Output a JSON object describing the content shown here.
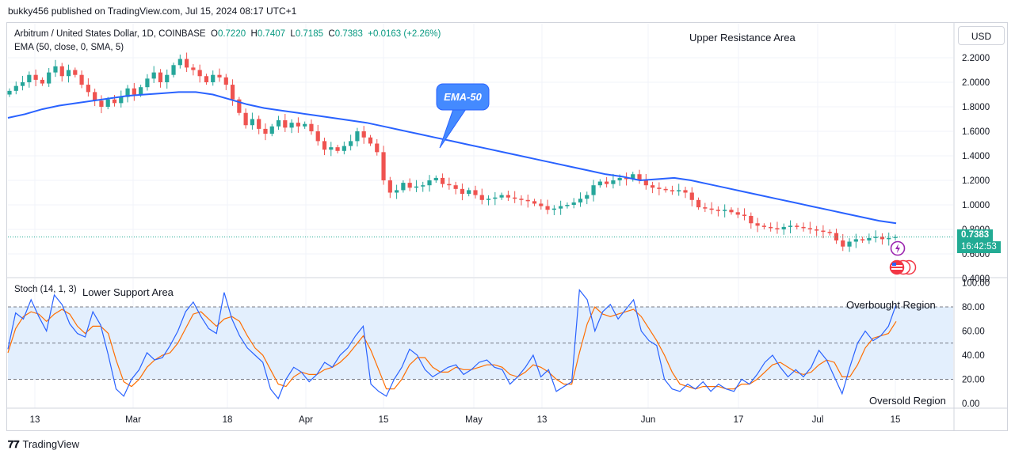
{
  "header": {
    "published": "bukky456 published on TradingView.com, Jul 15, 2024 08:17 UTC+1"
  },
  "legend": {
    "symbol": "Arbitrum / United States Dollar, 1D, COINBASE",
    "o_label": "O",
    "o_value": "0.7220",
    "h_label": "H",
    "h_value": "0.7407",
    "l_label": "L",
    "l_value": "0.7185",
    "c_label": "C",
    "c_value": "0.7383",
    "change": "+0.0163 (+2.26%)",
    "ema_line": "EMA (50, close, 0, SMA, 5)"
  },
  "toolbar": {
    "currency": "USD"
  },
  "price_axis": {
    "ticks": [
      "2.2000",
      "2.0000",
      "1.8000",
      "1.6000",
      "1.4000",
      "1.2000",
      "1.0000",
      "0.8000",
      "0.6000",
      "0.4000"
    ],
    "last_price": "0.7383",
    "countdown": "16:42:53"
  },
  "stoch_axis": {
    "ticks": [
      "100.00",
      "80.00",
      "60.00",
      "40.00",
      "20.00",
      "0.00"
    ]
  },
  "time_axis": {
    "labels": [
      "13",
      "Mar",
      "18",
      "Apr",
      "15",
      "May",
      "13",
      "Jun",
      "17",
      "Jul",
      "15"
    ]
  },
  "annotations": {
    "upper_resistance": "Upper Resistance Area",
    "ema_callout": "EMA-50",
    "lower_support": "Lower Support Area",
    "stoch_label": "Stoch (14, 1, 3)",
    "overbought": "Overbought Region",
    "oversold": "Oversold Region"
  },
  "footer": {
    "brand": "TradingView"
  },
  "colors": {
    "up": "#26a69a",
    "down": "#ef5350",
    "ema": "#2962ff",
    "stoch_k": "#2962ff",
    "stoch_d": "#ff6d00",
    "band": "#e3effd",
    "price_tag": "#22ab94"
  },
  "chart_data": [
    {
      "type": "candlestick",
      "title": "Arbitrum / United States Dollar, 1D, COINBASE",
      "ylim": [
        0.4,
        2.3
      ],
      "x_start": "2024-02-07",
      "x_end": "2024-07-15",
      "close_series": [
        1.93,
        1.97,
        2.0,
        2.06,
        2.02,
        1.99,
        2.08,
        2.13,
        2.05,
        2.1,
        2.06,
        1.98,
        1.92,
        1.85,
        1.8,
        1.86,
        1.83,
        1.88,
        1.95,
        1.9,
        1.96,
        2.03,
        2.08,
        2.0,
        2.06,
        2.14,
        2.19,
        2.12,
        2.1,
        2.05,
        2.0,
        2.06,
        2.04,
        1.98,
        1.86,
        1.75,
        1.65,
        1.7,
        1.62,
        1.58,
        1.64,
        1.69,
        1.63,
        1.67,
        1.64,
        1.66,
        1.6,
        1.52,
        1.45,
        1.47,
        1.44,
        1.48,
        1.52,
        1.6,
        1.55,
        1.5,
        1.43,
        1.2,
        1.1,
        1.12,
        1.18,
        1.14,
        1.15,
        1.16,
        1.2,
        1.22,
        1.17,
        1.16,
        1.13,
        1.09,
        1.12,
        1.08,
        1.04,
        1.05,
        1.06,
        1.08,
        1.06,
        1.05,
        1.04,
        1.03,
        1.01,
        0.99,
        0.96,
        0.97,
        0.99,
        1.0,
        1.02,
        1.05,
        1.08,
        1.16,
        1.19,
        1.17,
        1.2,
        1.22,
        1.21,
        1.25,
        1.2,
        1.16,
        1.14,
        1.13,
        1.12,
        1.11,
        1.12,
        1.1,
        1.04,
        0.98,
        0.97,
        0.96,
        0.95,
        0.96,
        0.94,
        0.92,
        0.91,
        0.85,
        0.83,
        0.82,
        0.81,
        0.8,
        0.82,
        0.83,
        0.82,
        0.81,
        0.8,
        0.79,
        0.78,
        0.77,
        0.71,
        0.66,
        0.7,
        0.72,
        0.71,
        0.73,
        0.74,
        0.72,
        0.73,
        0.7383
      ],
      "ema_50": [
        1.71,
        1.74,
        1.78,
        1.81,
        1.83,
        1.85,
        1.87,
        1.89,
        1.9,
        1.91,
        1.92,
        1.92,
        1.9,
        1.86,
        1.82,
        1.79,
        1.77,
        1.75,
        1.73,
        1.71,
        1.69,
        1.67,
        1.64,
        1.61,
        1.58,
        1.55,
        1.52,
        1.49,
        1.46,
        1.43,
        1.4,
        1.37,
        1.34,
        1.31,
        1.28,
        1.25,
        1.23,
        1.2,
        1.21,
        1.22,
        1.2,
        1.17,
        1.14,
        1.11,
        1.08,
        1.05,
        1.02,
        0.99,
        0.96,
        0.93,
        0.9,
        0.87,
        0.85
      ],
      "last_price": 0.7383
    },
    {
      "type": "line",
      "title": "Stoch (14, 1, 3)",
      "ylim": [
        0,
        100
      ],
      "reference_lines": [
        80,
        50,
        20
      ],
      "series": [
        {
          "name": "%K",
          "values": [
            45,
            75,
            70,
            86,
            72,
            60,
            90,
            82,
            66,
            58,
            55,
            76,
            65,
            40,
            12,
            6,
            20,
            28,
            42,
            36,
            38,
            48,
            60,
            76,
            84,
            72,
            62,
            58,
            92,
            70,
            56,
            46,
            40,
            34,
            12,
            4,
            20,
            30,
            26,
            18,
            24,
            34,
            30,
            40,
            46,
            56,
            64,
            16,
            10,
            6,
            20,
            30,
            45,
            40,
            28,
            22,
            26,
            30,
            32,
            24,
            28,
            34,
            36,
            30,
            28,
            16,
            22,
            30,
            40,
            22,
            28,
            10,
            14,
            18,
            94,
            86,
            60,
            76,
            82,
            70,
            78,
            86,
            60,
            52,
            48,
            20,
            12,
            10,
            16,
            12,
            18,
            10,
            16,
            12,
            10,
            20,
            16,
            24,
            34,
            40,
            30,
            22,
            28,
            22,
            30,
            44,
            36,
            22,
            8,
            30,
            50,
            60,
            52,
            56,
            64,
            82
          ]
        },
        {
          "name": "%D",
          "values": [
            42,
            62,
            72,
            76,
            74,
            68,
            74,
            78,
            74,
            64,
            58,
            64,
            64,
            58,
            36,
            18,
            14,
            20,
            30,
            36,
            40,
            42,
            50,
            62,
            74,
            76,
            70,
            64,
            70,
            72,
            68,
            56,
            46,
            40,
            28,
            16,
            14,
            22,
            26,
            24,
            24,
            28,
            30,
            34,
            40,
            48,
            56,
            44,
            28,
            12,
            12,
            20,
            32,
            38,
            38,
            30,
            26,
            26,
            30,
            28,
            28,
            30,
            32,
            32,
            30,
            24,
            22,
            26,
            32,
            30,
            26,
            20,
            16,
            16,
            42,
            66,
            80,
            74,
            72,
            74,
            76,
            78,
            72,
            62,
            52,
            40,
            26,
            16,
            14,
            12,
            14,
            14,
            14,
            12,
            12,
            16,
            16,
            20,
            26,
            32,
            34,
            30,
            26,
            24,
            26,
            32,
            36,
            34,
            22,
            22,
            32,
            46,
            54,
            56,
            58,
            68
          ]
        }
      ]
    }
  ]
}
